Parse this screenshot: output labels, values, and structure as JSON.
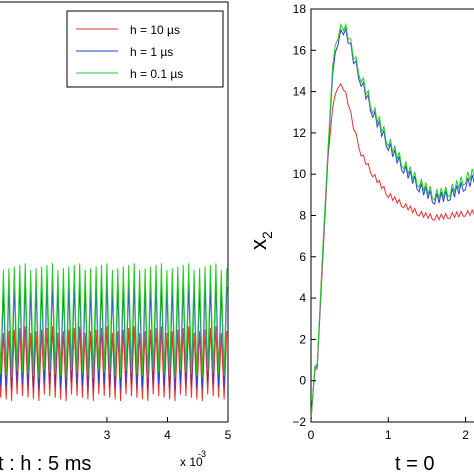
{
  "chart_data": [
    {
      "type": "line",
      "title": "",
      "xlabel": "t : h : 5 ms",
      "ylabel": "",
      "x_ticks": [
        "3",
        "4",
        "5"
      ],
      "x_multiplier": "x 10",
      "x_multiplier_exp": "-3",
      "xlim": [
        1.2,
        5.0
      ],
      "ylim": [
        0,
        18
      ],
      "legend": "top-right",
      "grid": false,
      "series": [
        {
          "name": "h = 10 µs",
          "color": "#e8312f",
          "x": [
            1.2,
            5.0
          ],
          "values": [
            3.6,
            3.6
          ],
          "osc_min": 0.9,
          "osc_max": 4.1,
          "period": 0.09
        },
        {
          "name": "h = 1 µs",
          "color": "#2a3fe0",
          "x": [
            1.2,
            5.0
          ],
          "values": [
            3.9,
            3.9
          ],
          "osc_min": 1.4,
          "osc_max": 6.0,
          "period": 0.09
        },
        {
          "name": "h = 0.1 µs",
          "color": "#22cc22",
          "x": [
            1.2,
            5.0
          ],
          "values": [
            4.3,
            4.3
          ],
          "osc_min": 1.9,
          "osc_max": 6.8,
          "period": 0.09
        }
      ]
    },
    {
      "type": "line",
      "title": "",
      "xlabel": "t = 0",
      "ylabel": "x",
      "ylabel_sub": "2",
      "x_ticks": [
        "0",
        "1",
        "2"
      ],
      "y_ticks": [
        "−2",
        "0",
        "2",
        "4",
        "6",
        "8",
        "10",
        "12",
        "14",
        "16",
        "18"
      ],
      "xlim": [
        0,
        2.2
      ],
      "ylim": [
        -2,
        18
      ],
      "grid": false,
      "series": [
        {
          "name": "h = 10 µs",
          "color": "#e8312f",
          "x": [
            0,
            0.05,
            0.08,
            0.15,
            0.22,
            0.28,
            0.35,
            0.42,
            0.48,
            0.55,
            0.65,
            0.8,
            1.0,
            1.2,
            1.4,
            1.6,
            1.8,
            2.0,
            2.2
          ],
          "values": [
            -1.9,
            0.5,
            0.6,
            5.7,
            10.8,
            13.2,
            14.3,
            14.2,
            13.5,
            12.3,
            11.0,
            10.0,
            9.0,
            8.5,
            8.1,
            7.9,
            8.0,
            8.1,
            8.2
          ]
        },
        {
          "name": "h = 1 µs",
          "color": "#2a3fe0",
          "x": [
            0,
            0.05,
            0.08,
            0.15,
            0.22,
            0.28,
            0.35,
            0.42,
            0.48,
            0.55,
            0.65,
            0.8,
            1.0,
            1.2,
            1.4,
            1.6,
            1.8,
            2.0,
            2.2
          ],
          "values": [
            -1.9,
            0.6,
            0.7,
            6.0,
            11.0,
            14.8,
            16.5,
            17.0,
            16.6,
            15.6,
            14.5,
            13.0,
            11.4,
            10.3,
            9.4,
            8.8,
            9.0,
            9.5,
            10.0
          ]
        },
        {
          "name": "h = 0.1 µs",
          "color": "#22cc22",
          "x": [
            0,
            0.05,
            0.08,
            0.15,
            0.22,
            0.28,
            0.35,
            0.42,
            0.48,
            0.55,
            0.65,
            0.8,
            1.0,
            1.2,
            1.4,
            1.6,
            1.8,
            2.0,
            2.2
          ],
          "values": [
            -1.9,
            0.7,
            0.8,
            6.2,
            11.2,
            15.2,
            16.8,
            17.2,
            16.8,
            15.8,
            14.7,
            13.2,
            11.6,
            10.5,
            9.6,
            9.0,
            9.2,
            9.8,
            10.3
          ]
        }
      ]
    }
  ]
}
